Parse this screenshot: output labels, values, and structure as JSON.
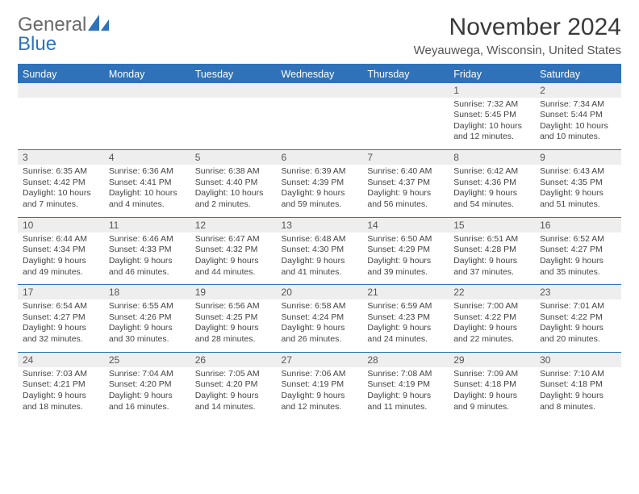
{
  "brand": {
    "part1": "General",
    "part2": "Blue"
  },
  "title": "November 2024",
  "location": "Weyauwega, Wisconsin, United States",
  "colors": {
    "primary": "#2f72b9",
    "header_text": "#ffffff",
    "daynum_bg": "#eeeeee",
    "text": "#444444",
    "background": "#ffffff"
  },
  "dow": [
    "Sunday",
    "Monday",
    "Tuesday",
    "Wednesday",
    "Thursday",
    "Friday",
    "Saturday"
  ],
  "weeks": [
    [
      {
        "n": "",
        "sr": "",
        "ss": "",
        "d1": "",
        "d2": ""
      },
      {
        "n": "",
        "sr": "",
        "ss": "",
        "d1": "",
        "d2": ""
      },
      {
        "n": "",
        "sr": "",
        "ss": "",
        "d1": "",
        "d2": ""
      },
      {
        "n": "",
        "sr": "",
        "ss": "",
        "d1": "",
        "d2": ""
      },
      {
        "n": "",
        "sr": "",
        "ss": "",
        "d1": "",
        "d2": ""
      },
      {
        "n": "1",
        "sr": "Sunrise: 7:32 AM",
        "ss": "Sunset: 5:45 PM",
        "d1": "Daylight: 10 hours",
        "d2": "and 12 minutes."
      },
      {
        "n": "2",
        "sr": "Sunrise: 7:34 AM",
        "ss": "Sunset: 5:44 PM",
        "d1": "Daylight: 10 hours",
        "d2": "and 10 minutes."
      }
    ],
    [
      {
        "n": "3",
        "sr": "Sunrise: 6:35 AM",
        "ss": "Sunset: 4:42 PM",
        "d1": "Daylight: 10 hours",
        "d2": "and 7 minutes."
      },
      {
        "n": "4",
        "sr": "Sunrise: 6:36 AM",
        "ss": "Sunset: 4:41 PM",
        "d1": "Daylight: 10 hours",
        "d2": "and 4 minutes."
      },
      {
        "n": "5",
        "sr": "Sunrise: 6:38 AM",
        "ss": "Sunset: 4:40 PM",
        "d1": "Daylight: 10 hours",
        "d2": "and 2 minutes."
      },
      {
        "n": "6",
        "sr": "Sunrise: 6:39 AM",
        "ss": "Sunset: 4:39 PM",
        "d1": "Daylight: 9 hours",
        "d2": "and 59 minutes."
      },
      {
        "n": "7",
        "sr": "Sunrise: 6:40 AM",
        "ss": "Sunset: 4:37 PM",
        "d1": "Daylight: 9 hours",
        "d2": "and 56 minutes."
      },
      {
        "n": "8",
        "sr": "Sunrise: 6:42 AM",
        "ss": "Sunset: 4:36 PM",
        "d1": "Daylight: 9 hours",
        "d2": "and 54 minutes."
      },
      {
        "n": "9",
        "sr": "Sunrise: 6:43 AM",
        "ss": "Sunset: 4:35 PM",
        "d1": "Daylight: 9 hours",
        "d2": "and 51 minutes."
      }
    ],
    [
      {
        "n": "10",
        "sr": "Sunrise: 6:44 AM",
        "ss": "Sunset: 4:34 PM",
        "d1": "Daylight: 9 hours",
        "d2": "and 49 minutes."
      },
      {
        "n": "11",
        "sr": "Sunrise: 6:46 AM",
        "ss": "Sunset: 4:33 PM",
        "d1": "Daylight: 9 hours",
        "d2": "and 46 minutes."
      },
      {
        "n": "12",
        "sr": "Sunrise: 6:47 AM",
        "ss": "Sunset: 4:32 PM",
        "d1": "Daylight: 9 hours",
        "d2": "and 44 minutes."
      },
      {
        "n": "13",
        "sr": "Sunrise: 6:48 AM",
        "ss": "Sunset: 4:30 PM",
        "d1": "Daylight: 9 hours",
        "d2": "and 41 minutes."
      },
      {
        "n": "14",
        "sr": "Sunrise: 6:50 AM",
        "ss": "Sunset: 4:29 PM",
        "d1": "Daylight: 9 hours",
        "d2": "and 39 minutes."
      },
      {
        "n": "15",
        "sr": "Sunrise: 6:51 AM",
        "ss": "Sunset: 4:28 PM",
        "d1": "Daylight: 9 hours",
        "d2": "and 37 minutes."
      },
      {
        "n": "16",
        "sr": "Sunrise: 6:52 AM",
        "ss": "Sunset: 4:27 PM",
        "d1": "Daylight: 9 hours",
        "d2": "and 35 minutes."
      }
    ],
    [
      {
        "n": "17",
        "sr": "Sunrise: 6:54 AM",
        "ss": "Sunset: 4:27 PM",
        "d1": "Daylight: 9 hours",
        "d2": "and 32 minutes."
      },
      {
        "n": "18",
        "sr": "Sunrise: 6:55 AM",
        "ss": "Sunset: 4:26 PM",
        "d1": "Daylight: 9 hours",
        "d2": "and 30 minutes."
      },
      {
        "n": "19",
        "sr": "Sunrise: 6:56 AM",
        "ss": "Sunset: 4:25 PM",
        "d1": "Daylight: 9 hours",
        "d2": "and 28 minutes."
      },
      {
        "n": "20",
        "sr": "Sunrise: 6:58 AM",
        "ss": "Sunset: 4:24 PM",
        "d1": "Daylight: 9 hours",
        "d2": "and 26 minutes."
      },
      {
        "n": "21",
        "sr": "Sunrise: 6:59 AM",
        "ss": "Sunset: 4:23 PM",
        "d1": "Daylight: 9 hours",
        "d2": "and 24 minutes."
      },
      {
        "n": "22",
        "sr": "Sunrise: 7:00 AM",
        "ss": "Sunset: 4:22 PM",
        "d1": "Daylight: 9 hours",
        "d2": "and 22 minutes."
      },
      {
        "n": "23",
        "sr": "Sunrise: 7:01 AM",
        "ss": "Sunset: 4:22 PM",
        "d1": "Daylight: 9 hours",
        "d2": "and 20 minutes."
      }
    ],
    [
      {
        "n": "24",
        "sr": "Sunrise: 7:03 AM",
        "ss": "Sunset: 4:21 PM",
        "d1": "Daylight: 9 hours",
        "d2": "and 18 minutes."
      },
      {
        "n": "25",
        "sr": "Sunrise: 7:04 AM",
        "ss": "Sunset: 4:20 PM",
        "d1": "Daylight: 9 hours",
        "d2": "and 16 minutes."
      },
      {
        "n": "26",
        "sr": "Sunrise: 7:05 AM",
        "ss": "Sunset: 4:20 PM",
        "d1": "Daylight: 9 hours",
        "d2": "and 14 minutes."
      },
      {
        "n": "27",
        "sr": "Sunrise: 7:06 AM",
        "ss": "Sunset: 4:19 PM",
        "d1": "Daylight: 9 hours",
        "d2": "and 12 minutes."
      },
      {
        "n": "28",
        "sr": "Sunrise: 7:08 AM",
        "ss": "Sunset: 4:19 PM",
        "d1": "Daylight: 9 hours",
        "d2": "and 11 minutes."
      },
      {
        "n": "29",
        "sr": "Sunrise: 7:09 AM",
        "ss": "Sunset: 4:18 PM",
        "d1": "Daylight: 9 hours",
        "d2": "and 9 minutes."
      },
      {
        "n": "30",
        "sr": "Sunrise: 7:10 AM",
        "ss": "Sunset: 4:18 PM",
        "d1": "Daylight: 9 hours",
        "d2": "and 8 minutes."
      }
    ]
  ]
}
